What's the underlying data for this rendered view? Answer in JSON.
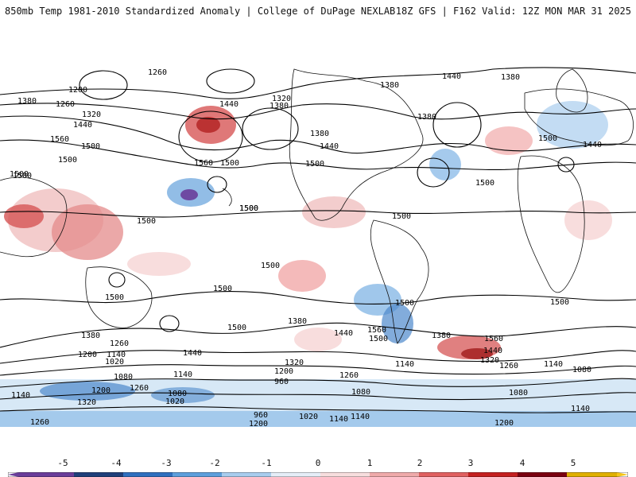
{
  "header": {
    "left_title": "850mb Temp 1981-2010 Standardized Anomaly | College of DuPage NEXLAB",
    "right_title": "18Z GFS | F162 Valid: 12Z MON MAR 31 2025"
  },
  "colorbar": {
    "ticks": [
      "-5",
      "-4",
      "-3",
      "-2",
      "-1",
      "0",
      "1",
      "2",
      "3",
      "4",
      "5"
    ],
    "colors": [
      "#6a3d9a",
      "#1f3f7a",
      "#2f6fbf",
      "#5d9fdc",
      "#a9cdee",
      "#e6eef8",
      "#f7dede",
      "#efaaaa",
      "#e06060",
      "#c42020",
      "#7a0010"
    ],
    "end_colors": {
      "low": "#6a3d9a",
      "high": "#f5c518"
    }
  },
  "contour_labels": [
    "1320",
    "1260",
    "1380",
    "1200",
    "1260",
    "1320",
    "1440",
    "1380",
    "1320",
    "1440",
    "1380",
    "1380",
    "1440",
    "1380",
    "1560",
    "1500",
    "1380",
    "1440",
    "1500",
    "1500",
    "1500",
    "1440",
    "1500",
    "1560",
    "1500",
    "1500",
    "1500",
    "1500",
    "1500",
    "1500",
    "1500",
    "1500",
    "1500",
    "1500",
    "1500",
    "1500",
    "1380",
    "1440",
    "1560",
    "1500",
    "1500",
    "1560",
    "1380",
    "1440",
    "1320",
    "1260",
    "1140",
    "1080",
    "1440",
    "1380",
    "1260",
    "1200",
    "1140",
    "1020",
    "1320",
    "1200",
    "1080",
    "1140",
    "960",
    "1260",
    "1140",
    "1260",
    "1080",
    "1020",
    "1200",
    "1140",
    "1320",
    "1080",
    "1080",
    "1140",
    "960",
    "1020",
    "1140",
    "1200",
    "1200",
    "1260",
    "1140"
  ]
}
